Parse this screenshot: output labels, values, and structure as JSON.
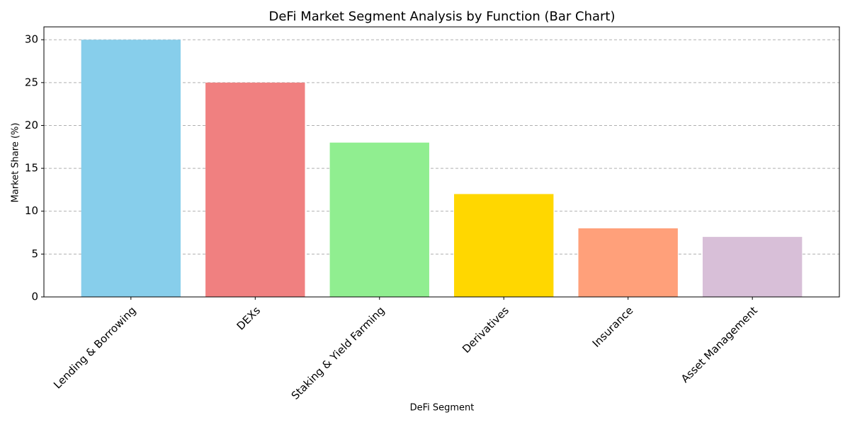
{
  "chart_data": {
    "type": "bar",
    "title": "DeFi Market Segment Analysis by Function (Bar Chart)",
    "xlabel": "DeFi Segment",
    "ylabel": "Market Share (%)",
    "categories": [
      "Lending & Borrowing",
      "DEXs",
      "Staking & Yield Farming",
      "Derivatives",
      "Insurance",
      "Asset Management"
    ],
    "values": [
      30,
      25,
      18,
      12,
      8,
      7
    ],
    "colors": [
      "#87ceeb",
      "#f08080",
      "#90ee90",
      "#ffd700",
      "#ffa07a",
      "#d8bfd8"
    ],
    "ylim": [
      0,
      31.5
    ],
    "yticks": [
      0,
      5,
      10,
      15,
      20,
      25,
      30
    ],
    "grid": true
  }
}
